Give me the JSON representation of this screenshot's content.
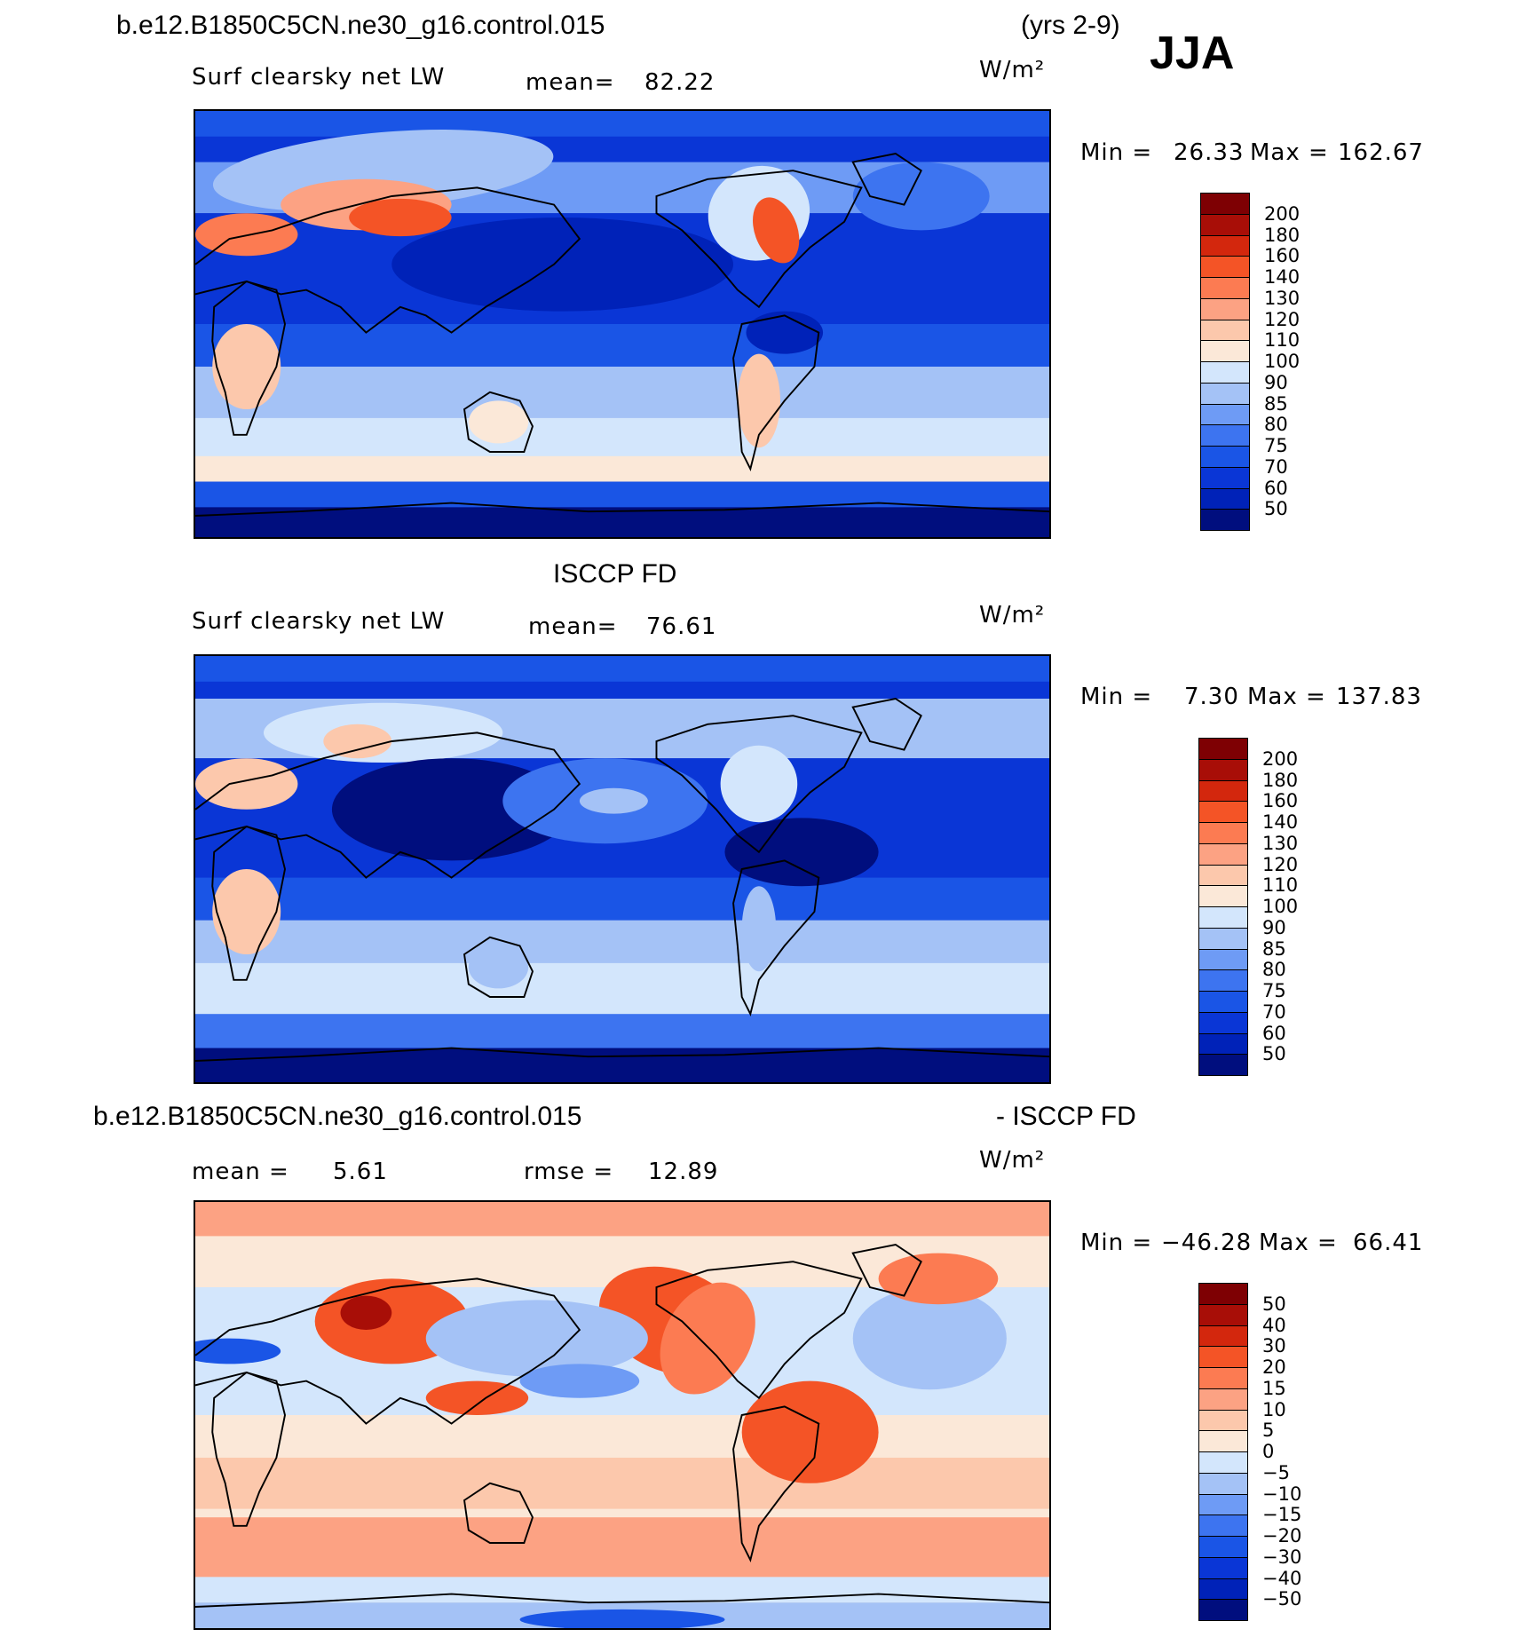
{
  "header": {
    "case_title": "b.e12.B1850C5CN.ne30_g16.control.015",
    "years": "(yrs 2-9)",
    "season": "JJA"
  },
  "colors": {
    "seq": [
      "#000e7e",
      "#0022b8",
      "#0a36d6",
      "#1a55e6",
      "#3d74f0",
      "#6e9bf5",
      "#a4c2f6",
      "#d3e6fc",
      "#fbe8d8",
      "#fcc8ac",
      "#fca283",
      "#fc7b52",
      "#f45426",
      "#d3270d",
      "#a80e07",
      "#7e0003"
    ],
    "diff": [
      "#000e7e",
      "#0022b8",
      "#0a36d6",
      "#1a55e6",
      "#3d74f0",
      "#6e9bf5",
      "#a4c2f6",
      "#d3e6fc",
      "#fbe8d8",
      "#fcc8ac",
      "#fca283",
      "#fc7b52",
      "#f45426",
      "#d3270d",
      "#a80e07",
      "#7e0003"
    ]
  },
  "chart_data": [
    {
      "type": "heatmap",
      "subtitle": "Surf clearsky net LW",
      "mean_label": "mean=",
      "mean_value": "82.22",
      "units": "W/m²",
      "min_label": "Min =",
      "min_value": "26.33",
      "max_label": "Max =",
      "max_value": "162.67",
      "levels": [
        "200",
        "180",
        "160",
        "140",
        "130",
        "120",
        "110",
        "100",
        "90",
        "85",
        "80",
        "75",
        "70",
        "60",
        "50"
      ]
    },
    {
      "type": "heatmap",
      "title": "ISCCP FD",
      "subtitle": "Surf clearsky net LW",
      "mean_label": "mean=",
      "mean_value": "76.61",
      "units": "W/m²",
      "min_label": "Min =",
      "min_value": "7.30",
      "max_label": "Max =",
      "max_value": "137.83",
      "levels": [
        "200",
        "180",
        "160",
        "140",
        "130",
        "120",
        "110",
        "100",
        "90",
        "85",
        "80",
        "75",
        "70",
        "60",
        "50"
      ]
    },
    {
      "type": "heatmap",
      "title_left": "b.e12.B1850C5CN.ne30_g16.control.015",
      "title_right": "- ISCCP FD",
      "mean_label": "mean =",
      "mean_value": "5.61",
      "rmse_label": "rmse =",
      "rmse_value": "12.89",
      "units": "W/m²",
      "min_label": "Min =",
      "min_value": "−46.28",
      "max_label": "Max =",
      "max_value": "66.41",
      "levels": [
        "50",
        "40",
        "30",
        "20",
        "15",
        "10",
        "5",
        "0",
        "−5",
        "−10",
        "−15",
        "−20",
        "−30",
        "−40",
        "−50"
      ]
    }
  ]
}
